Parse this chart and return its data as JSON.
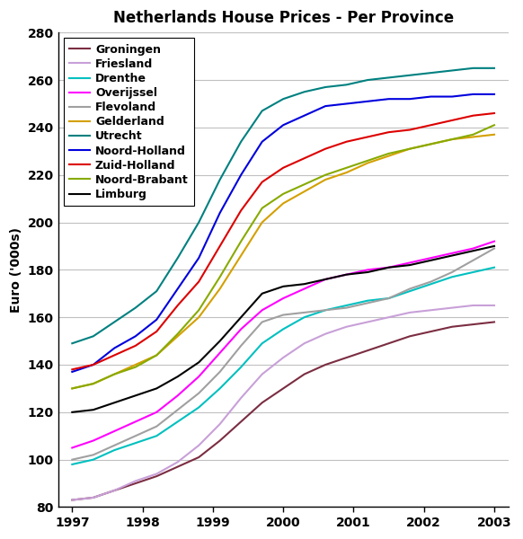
{
  "title": "Netherlands House Prices - Per Province",
  "ylabel": "Euro ('000s)",
  "ylim": [
    80,
    280
  ],
  "yticks": [
    80,
    100,
    120,
    140,
    160,
    180,
    200,
    220,
    240,
    260,
    280
  ],
  "xlim": [
    1997,
    2003
  ],
  "xticks": [
    1997,
    1998,
    1999,
    2000,
    2001,
    2002,
    2003
  ],
  "provinces": [
    {
      "name": "Groningen",
      "color": "#7b2d42",
      "data": [
        83,
        84,
        87,
        90,
        93,
        97,
        101,
        108,
        116,
        124,
        130,
        136,
        140,
        143,
        146,
        149,
        152,
        154,
        156,
        157,
        158
      ]
    },
    {
      "name": "Friesland",
      "color": "#c8a0d8",
      "data": [
        83,
        84,
        87,
        91,
        94,
        99,
        106,
        115,
        126,
        136,
        143,
        149,
        153,
        156,
        158,
        160,
        162,
        163,
        164,
        165,
        165
      ]
    },
    {
      "name": "Drenthe",
      "color": "#00c0c0",
      "data": [
        98,
        100,
        104,
        107,
        110,
        116,
        122,
        130,
        139,
        149,
        155,
        160,
        163,
        165,
        167,
        168,
        171,
        174,
        177,
        179,
        181
      ]
    },
    {
      "name": "Overijssel",
      "color": "#ff00ff",
      "data": [
        105,
        108,
        112,
        116,
        120,
        127,
        135,
        145,
        155,
        163,
        168,
        172,
        176,
        178,
        180,
        181,
        183,
        185,
        187,
        189,
        192
      ]
    },
    {
      "name": "Flevoland",
      "color": "#a0a0a0",
      "data": [
        100,
        102,
        106,
        110,
        114,
        121,
        128,
        137,
        148,
        158,
        161,
        162,
        163,
        164,
        166,
        168,
        172,
        175,
        179,
        184,
        189
      ]
    },
    {
      "name": "Gelderland",
      "color": "#d4a000",
      "data": [
        130,
        132,
        136,
        140,
        144,
        152,
        160,
        172,
        186,
        200,
        208,
        213,
        218,
        221,
        225,
        228,
        231,
        233,
        235,
        236,
        237
      ]
    },
    {
      "name": "Utrecht",
      "color": "#008080",
      "data": [
        149,
        152,
        158,
        164,
        171,
        185,
        200,
        218,
        234,
        247,
        252,
        255,
        257,
        258,
        260,
        261,
        262,
        263,
        264,
        265,
        265
      ]
    },
    {
      "name": "Noord-Holland",
      "color": "#0000dd",
      "data": [
        137,
        140,
        147,
        152,
        159,
        172,
        185,
        204,
        220,
        234,
        241,
        245,
        249,
        250,
        251,
        252,
        252,
        253,
        253,
        254,
        254
      ]
    },
    {
      "name": "Zuid-Holland",
      "color": "#dd0000",
      "data": [
        138,
        140,
        144,
        148,
        154,
        165,
        175,
        190,
        205,
        217,
        223,
        227,
        231,
        234,
        236,
        238,
        239,
        241,
        243,
        245,
        246
      ]
    },
    {
      "name": "Noord-Brabant",
      "color": "#88aa00",
      "data": [
        130,
        132,
        136,
        139,
        144,
        153,
        163,
        177,
        192,
        206,
        212,
        216,
        220,
        223,
        226,
        229,
        231,
        233,
        235,
        237,
        241
      ]
    },
    {
      "name": "Limburg",
      "color": "#000000",
      "data": [
        120,
        121,
        124,
        127,
        130,
        135,
        141,
        150,
        160,
        170,
        173,
        174,
        176,
        178,
        179,
        181,
        182,
        184,
        186,
        188,
        190
      ]
    }
  ],
  "background_color": "#ffffff",
  "grid_color": "#c0c0c0"
}
